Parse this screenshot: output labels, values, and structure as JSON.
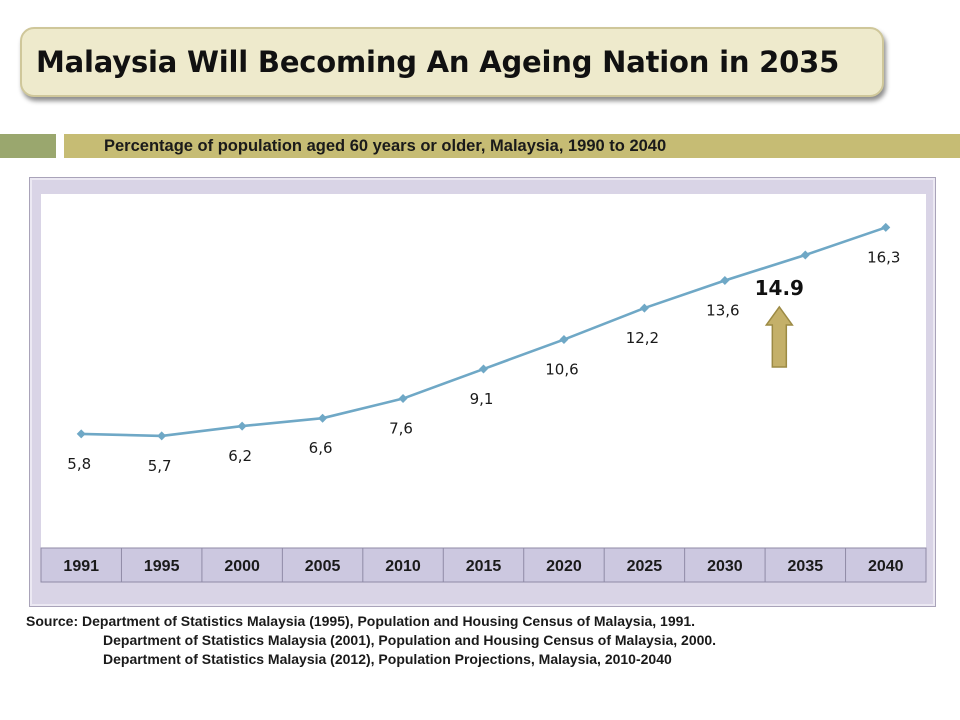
{
  "title": "Malaysia Will Becoming An Ageing Nation in 2035",
  "subtitle": "Percentage of population aged 60 years or older, Malaysia, 1990 to 2040",
  "chart_data": {
    "type": "line",
    "title": "Percentage of population aged 60 years or older, Malaysia, 1990 to 2040",
    "categories": [
      "1991",
      "1995",
      "2000",
      "2005",
      "2010",
      "2015",
      "2020",
      "2025",
      "2030",
      "2035",
      "2040"
    ],
    "series": [
      {
        "values": [
          5.8,
          5.7,
          6.2,
          6.6,
          7.6,
          9.1,
          10.6,
          12.2,
          13.6,
          14.9,
          16.3
        ],
        "data_labels": [
          "5,8",
          "5,7",
          "6,2",
          "6,6",
          "7,6",
          "9,1",
          "10,6",
          "12,2",
          "13,6",
          "",
          "16,3"
        ]
      }
    ],
    "ylim": [
      0,
      18
    ],
    "grid": false,
    "annotations": [
      {
        "category": "2035",
        "text": "14.9",
        "marker": "up-arrow"
      }
    ],
    "colors": {
      "line": "#6fa8c6",
      "arrow_fill": "#c4b069",
      "arrow_stroke": "#9c8a44"
    }
  },
  "source": {
    "label": "Source:",
    "lines": [
      "Department of Statistics Malaysia (1995), Population and Housing Census of Malaysia, 1991.",
      "Department of Statistics Malaysia (2001), Population and Housing Census of Malaysia, 2000.",
      "Department of Statistics Malaysia (2012), Population Projections, Malaysia, 2010-2040"
    ]
  }
}
